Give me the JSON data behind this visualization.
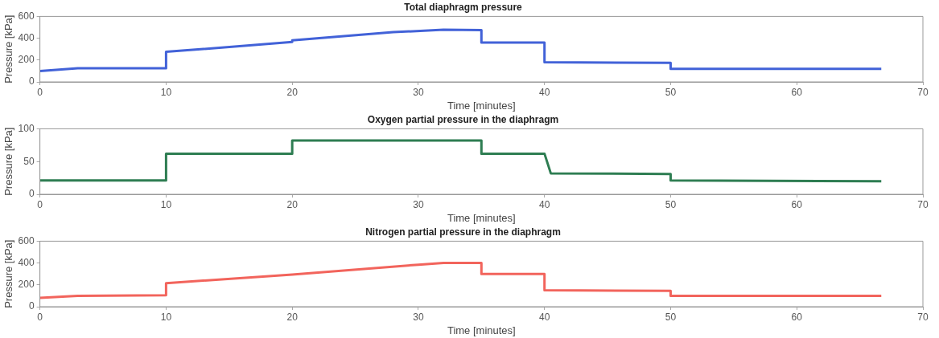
{
  "chart_data": [
    {
      "type": "line",
      "title": "Total diaphragm pressure",
      "xlabel": "Time [minutes]",
      "ylabel": "Pressure [kPa]",
      "xlim": [
        0,
        70
      ],
      "xticks": [
        0,
        10,
        20,
        30,
        40,
        50,
        60,
        70
      ],
      "ylim": [
        0,
        600
      ],
      "yticks": [
        0,
        200,
        400,
        600
      ],
      "grid": false,
      "legend": false,
      "marker": "none",
      "line_style": "solid",
      "series": [
        {
          "color": "#4262d8",
          "x": [
            0,
            3,
            10,
            10,
            20,
            20,
            28,
            32,
            35,
            35,
            40,
            40,
            50,
            50,
            66.7
          ],
          "values": [
            100,
            125,
            125,
            275,
            365,
            380,
            455,
            478,
            475,
            360,
            360,
            180,
            175,
            120,
            120
          ]
        }
      ]
    },
    {
      "type": "line",
      "title": "Oxygen partial pressure in the diaphragm",
      "xlabel": "Time [minutes]",
      "ylabel": "Pressure [kPa]",
      "xlim": [
        0,
        70
      ],
      "xticks": [
        0,
        10,
        20,
        30,
        40,
        50,
        60,
        70
      ],
      "ylim": [
        0,
        100
      ],
      "yticks": [
        0,
        50,
        100
      ],
      "grid": false,
      "legend": false,
      "marker": "none",
      "line_style": "solid",
      "series": [
        {
          "color": "#2e7d52",
          "x": [
            0,
            10,
            10,
            20,
            20,
            35,
            35,
            40,
            40.5,
            50,
            50,
            66.7
          ],
          "values": [
            21,
            21,
            62,
            62,
            82,
            82,
            62,
            62,
            32,
            31,
            21,
            20
          ]
        }
      ]
    },
    {
      "type": "line",
      "title": "Nitrogen partial pressure in the diaphragm",
      "xlabel": "Time [minutes]",
      "ylabel": "Pressure [kPa]",
      "xlim": [
        0,
        70
      ],
      "xticks": [
        0,
        10,
        20,
        30,
        40,
        50,
        60,
        70
      ],
      "ylim": [
        0,
        600
      ],
      "yticks": [
        0,
        200,
        400,
        600
      ],
      "grid": false,
      "legend": false,
      "marker": "none",
      "line_style": "solid",
      "series": [
        {
          "color": "#f2645c",
          "x": [
            0,
            3,
            10,
            10,
            20,
            30,
            32,
            35,
            35,
            40,
            40,
            50,
            50,
            66.7
          ],
          "values": [
            80,
            100,
            105,
            215,
            295,
            385,
            400,
            400,
            300,
            300,
            150,
            145,
            100,
            100
          ]
        }
      ]
    }
  ]
}
